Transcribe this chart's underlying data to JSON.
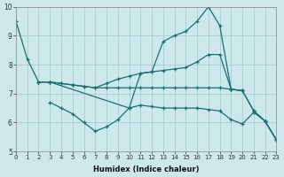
{
  "xlabel": "Humidex (Indice chaleur)",
  "xlim": [
    0,
    23
  ],
  "ylim": [
    5,
    10
  ],
  "yticks": [
    5,
    6,
    7,
    8,
    9,
    10
  ],
  "xticks": [
    0,
    1,
    2,
    3,
    4,
    5,
    6,
    7,
    8,
    9,
    10,
    11,
    12,
    13,
    14,
    15,
    16,
    17,
    18,
    19,
    20,
    21,
    22,
    23
  ],
  "background_color": "#cce8ea",
  "grid_color": "#a0c8cc",
  "line_color": "#1a7070",
  "lines": [
    {
      "x": [
        0,
        1,
        2,
        3,
        4,
        5,
        6,
        7,
        8,
        9,
        10,
        11,
        12,
        13,
        14,
        15,
        16,
        17,
        18,
        19,
        20,
        21,
        22,
        23
      ],
      "y": [
        9.5,
        8.2,
        7.4,
        7.4,
        7.35,
        7.3,
        7.25,
        7.2,
        7.35,
        7.5,
        7.6,
        7.7,
        7.75,
        7.8,
        7.85,
        7.9,
        8.1,
        8.35,
        8.35,
        7.15,
        7.1,
        6.4,
        6.05,
        5.4
      ]
    },
    {
      "x": [
        2,
        3,
        10,
        11,
        12,
        13,
        14,
        15,
        16,
        17,
        18,
        19,
        20,
        21,
        22,
        23
      ],
      "y": [
        7.4,
        7.4,
        6.5,
        7.7,
        7.75,
        8.8,
        9.0,
        9.15,
        9.5,
        10.0,
        9.35,
        7.15,
        7.1,
        6.4,
        6.05,
        5.4
      ]
    },
    {
      "x": [
        2,
        3,
        4,
        5,
        6,
        7,
        8,
        9,
        10,
        11,
        12,
        13,
        14,
        15,
        16,
        17,
        18,
        19,
        20
      ],
      "y": [
        7.4,
        7.4,
        7.35,
        7.3,
        7.25,
        7.2,
        7.2,
        7.2,
        7.2,
        7.2,
        7.2,
        7.2,
        7.2,
        7.2,
        7.2,
        7.2,
        7.2,
        7.15,
        7.1
      ]
    },
    {
      "x": [
        3,
        4,
        5,
        6,
        7,
        8,
        9,
        10,
        11,
        12,
        13,
        14,
        15,
        16,
        17,
        18,
        19,
        20,
        21,
        22,
        23
      ],
      "y": [
        6.7,
        6.5,
        6.3,
        6.0,
        5.7,
        5.85,
        6.1,
        6.5,
        6.6,
        6.55,
        6.5,
        6.5,
        6.5,
        6.5,
        6.45,
        6.4,
        6.1,
        5.95,
        6.35,
        6.05,
        5.4
      ]
    }
  ]
}
